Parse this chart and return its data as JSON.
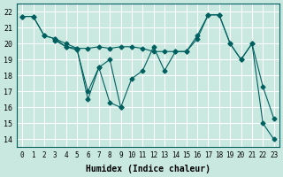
{
  "xlabel": "Humidex (Indice chaleur)",
  "ylabel": "",
  "bg_color": "#c8e8e0",
  "line_color": "#006060",
  "grid_color": "#ffffff",
  "xlim": [
    -0.5,
    23.5
  ],
  "ylim": [
    13.5,
    22.5
  ],
  "yticks": [
    14,
    15,
    16,
    17,
    18,
    19,
    20,
    21,
    22
  ],
  "xticks": [
    0,
    1,
    2,
    3,
    4,
    5,
    6,
    7,
    8,
    9,
    10,
    11,
    12,
    13,
    14,
    15,
    16,
    17,
    18,
    19,
    20,
    21,
    22,
    23
  ],
  "series": [
    [
      21.7,
      21.7,
      20.5,
      20.3,
      20.0,
      19.7,
      19.7,
      19.8,
      19.7,
      19.8,
      19.8,
      19.7,
      19.5,
      19.5,
      19.5,
      19.5,
      20.3,
      21.8,
      21.8,
      20.0,
      19.0,
      20.0,
      17.3,
      15.3
    ],
    [
      21.7,
      21.7,
      20.5,
      20.3,
      19.8,
      19.7,
      16.5,
      18.5,
      19.0,
      16.0,
      17.8,
      18.3,
      19.8,
      18.3,
      19.5,
      19.5,
      20.5,
      21.8,
      21.8,
      20.0,
      19.0,
      20.0,
      15.0,
      14.0
    ],
    [
      null,
      null,
      null,
      20.2,
      19.8,
      19.6,
      17.0,
      18.5,
      16.3,
      16.0,
      null,
      null,
      null,
      null,
      null,
      null,
      null,
      null,
      null,
      null,
      null,
      null,
      null,
      null
    ]
  ]
}
